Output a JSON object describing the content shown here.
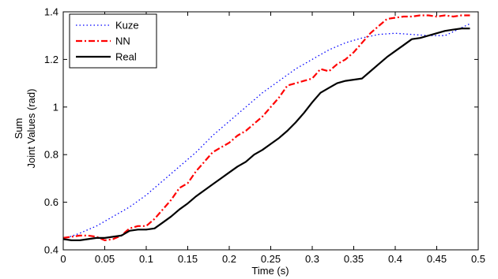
{
  "chart_data": {
    "type": "line",
    "title": "",
    "xlabel": "Time (s)",
    "ylabel_lines": [
      "Sum",
      "Joint Values (rad)"
    ],
    "xlim": [
      0,
      0.5
    ],
    "ylim": [
      0.4,
      1.4
    ],
    "xticks": [
      0,
      0.05,
      0.1,
      0.15,
      0.2,
      0.25,
      0.3,
      0.35,
      0.4,
      0.45,
      0.5
    ],
    "xtick_labels": [
      "0",
      "0.05",
      "0.1",
      "0.15",
      "0.2",
      "0.25",
      "0.3",
      "0.35",
      "0.4",
      "0.45",
      "0.5"
    ],
    "yticks": [
      0.4,
      0.6,
      0.8,
      1.0,
      1.2,
      1.4
    ],
    "ytick_labels": [
      "0.4",
      "0.6",
      "0.8",
      "1",
      "1.2",
      "1.4"
    ],
    "grid": false,
    "legend_position": "top-left",
    "series": [
      {
        "name": "Kuze",
        "color": "#0000ff",
        "style": "dotted",
        "x": [
          0.0,
          0.02,
          0.04,
          0.06,
          0.08,
          0.1,
          0.12,
          0.14,
          0.16,
          0.18,
          0.2,
          0.22,
          0.24,
          0.26,
          0.28,
          0.3,
          0.32,
          0.34,
          0.36,
          0.38,
          0.4,
          0.42,
          0.44,
          0.46,
          0.49
        ],
        "y": [
          0.445,
          0.47,
          0.5,
          0.54,
          0.58,
          0.63,
          0.69,
          0.75,
          0.81,
          0.88,
          0.94,
          1.0,
          1.06,
          1.11,
          1.16,
          1.2,
          1.24,
          1.27,
          1.29,
          1.305,
          1.31,
          1.305,
          1.3,
          1.3,
          1.35
        ]
      },
      {
        "name": "NN",
        "color": "#ff0000",
        "style": "dashdot",
        "x": [
          0.0,
          0.01,
          0.02,
          0.03,
          0.04,
          0.05,
          0.06,
          0.07,
          0.08,
          0.09,
          0.1,
          0.11,
          0.12,
          0.13,
          0.14,
          0.15,
          0.16,
          0.17,
          0.18,
          0.19,
          0.2,
          0.21,
          0.22,
          0.23,
          0.24,
          0.25,
          0.26,
          0.27,
          0.28,
          0.29,
          0.3,
          0.31,
          0.32,
          0.33,
          0.34,
          0.35,
          0.36,
          0.37,
          0.38,
          0.39,
          0.4,
          0.41,
          0.42,
          0.43,
          0.44,
          0.45,
          0.46,
          0.47,
          0.48,
          0.49
        ],
        "y": [
          0.45,
          0.455,
          0.46,
          0.46,
          0.455,
          0.44,
          0.445,
          0.46,
          0.49,
          0.5,
          0.5,
          0.53,
          0.57,
          0.61,
          0.66,
          0.68,
          0.73,
          0.77,
          0.81,
          0.83,
          0.85,
          0.88,
          0.9,
          0.93,
          0.96,
          1.0,
          1.04,
          1.09,
          1.1,
          1.11,
          1.12,
          1.16,
          1.15,
          1.18,
          1.2,
          1.23,
          1.27,
          1.31,
          1.34,
          1.37,
          1.375,
          1.38,
          1.38,
          1.385,
          1.385,
          1.38,
          1.385,
          1.38,
          1.385,
          1.385
        ]
      },
      {
        "name": "Real",
        "color": "#000000",
        "style": "solid",
        "x": [
          0.0,
          0.01,
          0.02,
          0.03,
          0.04,
          0.05,
          0.06,
          0.07,
          0.08,
          0.09,
          0.1,
          0.11,
          0.12,
          0.13,
          0.14,
          0.15,
          0.16,
          0.17,
          0.18,
          0.19,
          0.2,
          0.21,
          0.22,
          0.23,
          0.24,
          0.25,
          0.26,
          0.27,
          0.28,
          0.29,
          0.3,
          0.31,
          0.32,
          0.33,
          0.34,
          0.35,
          0.36,
          0.37,
          0.38,
          0.39,
          0.4,
          0.41,
          0.42,
          0.43,
          0.44,
          0.45,
          0.46,
          0.47,
          0.48,
          0.49
        ],
        "y": [
          0.445,
          0.44,
          0.44,
          0.445,
          0.45,
          0.45,
          0.455,
          0.46,
          0.48,
          0.485,
          0.485,
          0.49,
          0.515,
          0.54,
          0.57,
          0.595,
          0.625,
          0.65,
          0.675,
          0.7,
          0.725,
          0.75,
          0.77,
          0.8,
          0.82,
          0.845,
          0.87,
          0.9,
          0.935,
          0.975,
          1.02,
          1.06,
          1.08,
          1.1,
          1.11,
          1.115,
          1.12,
          1.15,
          1.18,
          1.21,
          1.235,
          1.26,
          1.285,
          1.29,
          1.3,
          1.31,
          1.32,
          1.325,
          1.33,
          1.33
        ]
      }
    ]
  }
}
